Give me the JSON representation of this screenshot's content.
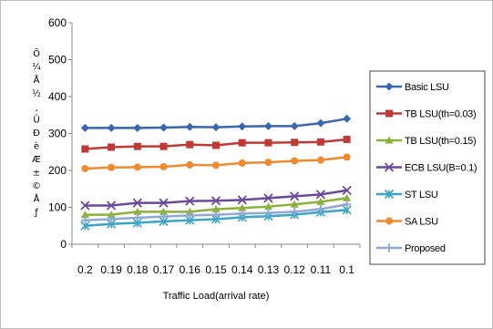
{
  "chart_data": {
    "type": "line",
    "title": "",
    "xlabel": "Traffic Load(arrival rate)",
    "ylabel_glyphs": [
      "Ö",
      "¼",
      "Å",
      "½",
      "¸",
      "Ü",
      "Ð",
      "è",
      "Æ",
      "±",
      "©",
      "Å",
      "ƒ"
    ],
    "categories": [
      "0.2",
      "0.19",
      "0.18",
      "0.17",
      "0.16",
      "0.15",
      "0.14",
      "0.13",
      "0.12",
      "0.11",
      "0.1"
    ],
    "y_ticks": [
      "0",
      "100",
      "200",
      "300",
      "400",
      "500",
      "600"
    ],
    "ylim": [
      0,
      600
    ],
    "grid": false,
    "legend_position": "right",
    "series": [
      {
        "name": "Basic LSU",
        "color": "#3a66b0",
        "marker": "diamond",
        "values": [
          315,
          315,
          315,
          316,
          318,
          317,
          319,
          320,
          320,
          328,
          340
        ]
      },
      {
        "name": "TB LSU(th=0.03)",
        "color": "#bf3a36",
        "marker": "square",
        "values": [
          258,
          263,
          265,
          265,
          270,
          268,
          275,
          275,
          276,
          277,
          284
        ]
      },
      {
        "name": "TB LSU(th=0.15)",
        "color": "#8bb13b",
        "marker": "triangle",
        "values": [
          80,
          80,
          88,
          88,
          88,
          95,
          98,
          102,
          108,
          115,
          125
        ]
      },
      {
        "name": "ECB LSU(B=0.1)",
        "color": "#6a4a9a",
        "marker": "x",
        "values": [
          105,
          105,
          112,
          112,
          117,
          118,
          120,
          125,
          130,
          135,
          146
        ]
      },
      {
        "name": "ST LSU",
        "color": "#3aa5c5",
        "marker": "asterisk",
        "values": [
          50,
          55,
          58,
          62,
          65,
          68,
          73,
          76,
          80,
          87,
          93
        ]
      },
      {
        "name": "SA LSU",
        "color": "#ee8a2f",
        "marker": "circle",
        "values": [
          205,
          208,
          209,
          210,
          215,
          214,
          220,
          222,
          226,
          228,
          236
        ]
      },
      {
        "name": "Proposed",
        "color": "#8ea9d6",
        "marker": "plus",
        "values": [
          65,
          68,
          72,
          75,
          78,
          80,
          83,
          85,
          88,
          95,
          108
        ]
      }
    ]
  }
}
